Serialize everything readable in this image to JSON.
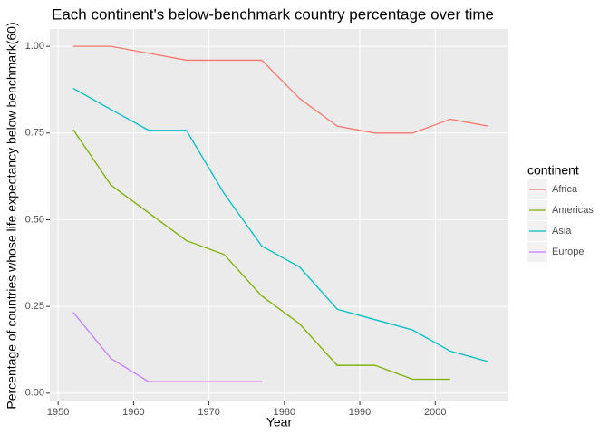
{
  "chart_data": {
    "type": "line",
    "title": "Each continent's below-benchmark country percentage over time",
    "x_label": "Year",
    "y_label": "Percentage of countries whose life expectancy below benchmark(60)",
    "legend_title": "continent",
    "x": [
      1952,
      1957,
      1962,
      1967,
      1972,
      1977,
      1982,
      1987,
      1992,
      1997,
      2002,
      2007
    ],
    "series": [
      {
        "name": "Africa",
        "color": "#F8766D",
        "values": [
          1.0,
          1.0,
          0.98,
          0.96,
          0.96,
          0.96,
          0.85,
          0.77,
          0.75,
          0.75,
          0.79,
          0.77
        ]
      },
      {
        "name": "Americas",
        "color": "#7CAE00",
        "values": [
          0.76,
          0.6,
          0.52,
          0.44,
          0.4,
          0.28,
          0.2,
          0.08,
          0.08,
          0.04,
          0.04,
          null
        ]
      },
      {
        "name": "Asia",
        "color": "#00BFC4",
        "values": [
          0.879,
          0.818,
          0.758,
          0.758,
          0.576,
          0.424,
          0.364,
          0.242,
          0.212,
          0.182,
          0.121,
          0.091
        ]
      },
      {
        "name": "Europe",
        "color": "#C77CFF",
        "values": [
          0.233,
          0.1,
          0.033,
          0.033,
          0.033,
          0.033,
          null,
          null,
          null,
          null,
          null,
          null
        ]
      }
    ],
    "xlim": [
      1948.9,
      2009.7
    ],
    "ylim": [
      -0.024,
      1.05
    ],
    "xticks": [
      1950,
      1960,
      1970,
      1980,
      1990,
      2000
    ],
    "yticks": [
      {
        "value": 0,
        "label": "0.00"
      },
      {
        "value": 0.25,
        "label": "0.25"
      },
      {
        "value": 0.5,
        "label": "0.50"
      },
      {
        "value": 0.75,
        "label": "0.75"
      },
      {
        "value": 1,
        "label": "1.00"
      }
    ],
    "grid": true
  }
}
